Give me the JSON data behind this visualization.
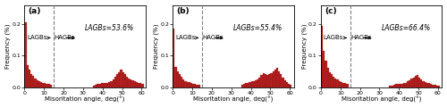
{
  "panels": [
    {
      "label": "(a)",
      "lagb_pct": "LAGBs=53.6%",
      "lagb_label": "LAGBs",
      "hagb_label": "HAGBs"
    },
    {
      "label": "(b)",
      "lagb_pct": "LAGBs=55.4%",
      "lagb_label": "LAGBs",
      "hagb_label": "HAGBs"
    },
    {
      "label": "(c)",
      "lagb_pct": "LAGBs=66.4%",
      "lagb_label": "LAGBs",
      "hagb_label": "HAGBs"
    }
  ],
  "bar_color": "#b22222",
  "bar_edge_color": "#8b0000",
  "dashed_line_x": 15,
  "xlim": [
    0,
    62
  ],
  "ylim": [
    0,
    0.26
  ],
  "xticks": [
    0,
    10,
    20,
    30,
    40,
    50,
    60
  ],
  "yticks": [
    0.0,
    0.1,
    0.2
  ],
  "xlabel": "Misoritation angle, deg(°)",
  "ylabel": "Frequency (%)",
  "xlabel_fontsize": 5.0,
  "ylabel_fontsize": 5.0,
  "tick_fontsize": 4.5,
  "annotation_fontsize": 5.0,
  "pct_fontsize": 5.5,
  "label_fontsize": 6.5,
  "background_color": "#ffffff",
  "hist_a_low": [
    0.205,
    0.07,
    0.055,
    0.042,
    0.035,
    0.028,
    0.022,
    0.018,
    0.016,
    0.014,
    0.012,
    0.01,
    0.009,
    0.008,
    0.0
  ],
  "hist_a_high": [
    0.0,
    0.0,
    0.0,
    0.0,
    0.0,
    0.0,
    0.0,
    0.0,
    0.0,
    0.0,
    0.0,
    0.0,
    0.0,
    0.0,
    0.0,
    0.0,
    0.0,
    0.0,
    0.0,
    0.0,
    0.0,
    0.0,
    0.0,
    0.0,
    0.0,
    0.0,
    0.0,
    0.0,
    0.0,
    0.0,
    0.0,
    0.0,
    0.0,
    0.0,
    0.0,
    0.006,
    0.007,
    0.009,
    0.011,
    0.012,
    0.013,
    0.012,
    0.014,
    0.016,
    0.02,
    0.025,
    0.032,
    0.04,
    0.048,
    0.055,
    0.048,
    0.04,
    0.033,
    0.028,
    0.025,
    0.022,
    0.018,
    0.016,
    0.014,
    0.012,
    0.01,
    0.0
  ],
  "hist_b_low": [
    0.185,
    0.065,
    0.05,
    0.04,
    0.032,
    0.025,
    0.02,
    0.017,
    0.015,
    0.013,
    0.011,
    0.009,
    0.008,
    0.007,
    0.0
  ],
  "hist_b_high": [
    0.0,
    0.0,
    0.0,
    0.0,
    0.0,
    0.0,
    0.0,
    0.0,
    0.0,
    0.0,
    0.0,
    0.0,
    0.0,
    0.0,
    0.0,
    0.0,
    0.0,
    0.0,
    0.0,
    0.0,
    0.0,
    0.0,
    0.0,
    0.0,
    0.0,
    0.0,
    0.0,
    0.0,
    0.0,
    0.0,
    0.0,
    0.0,
    0.0,
    0.0,
    0.0,
    0.008,
    0.01,
    0.012,
    0.014,
    0.016,
    0.018,
    0.02,
    0.022,
    0.025,
    0.03,
    0.038,
    0.045,
    0.04,
    0.038,
    0.042,
    0.045,
    0.05,
    0.055,
    0.06,
    0.05,
    0.04,
    0.03,
    0.022,
    0.016,
    0.01,
    0.007,
    0.0
  ],
  "hist_c_low": [
    0.195,
    0.115,
    0.085,
    0.06,
    0.048,
    0.04,
    0.033,
    0.028,
    0.024,
    0.02,
    0.017,
    0.014,
    0.012,
    0.01,
    0.0
  ],
  "hist_c_high": [
    0.0,
    0.0,
    0.0,
    0.0,
    0.0,
    0.0,
    0.0,
    0.0,
    0.0,
    0.0,
    0.0,
    0.0,
    0.0,
    0.0,
    0.0,
    0.0,
    0.0,
    0.0,
    0.0,
    0.0,
    0.0,
    0.0,
    0.0,
    0.0,
    0.0,
    0.0,
    0.0,
    0.0,
    0.0,
    0.0,
    0.0,
    0.0,
    0.0,
    0.0,
    0.0,
    0.005,
    0.006,
    0.008,
    0.009,
    0.01,
    0.011,
    0.01,
    0.012,
    0.014,
    0.018,
    0.022,
    0.026,
    0.03,
    0.035,
    0.038,
    0.03,
    0.025,
    0.02,
    0.016,
    0.014,
    0.012,
    0.01,
    0.008,
    0.007,
    0.006,
    0.005,
    0.0
  ]
}
